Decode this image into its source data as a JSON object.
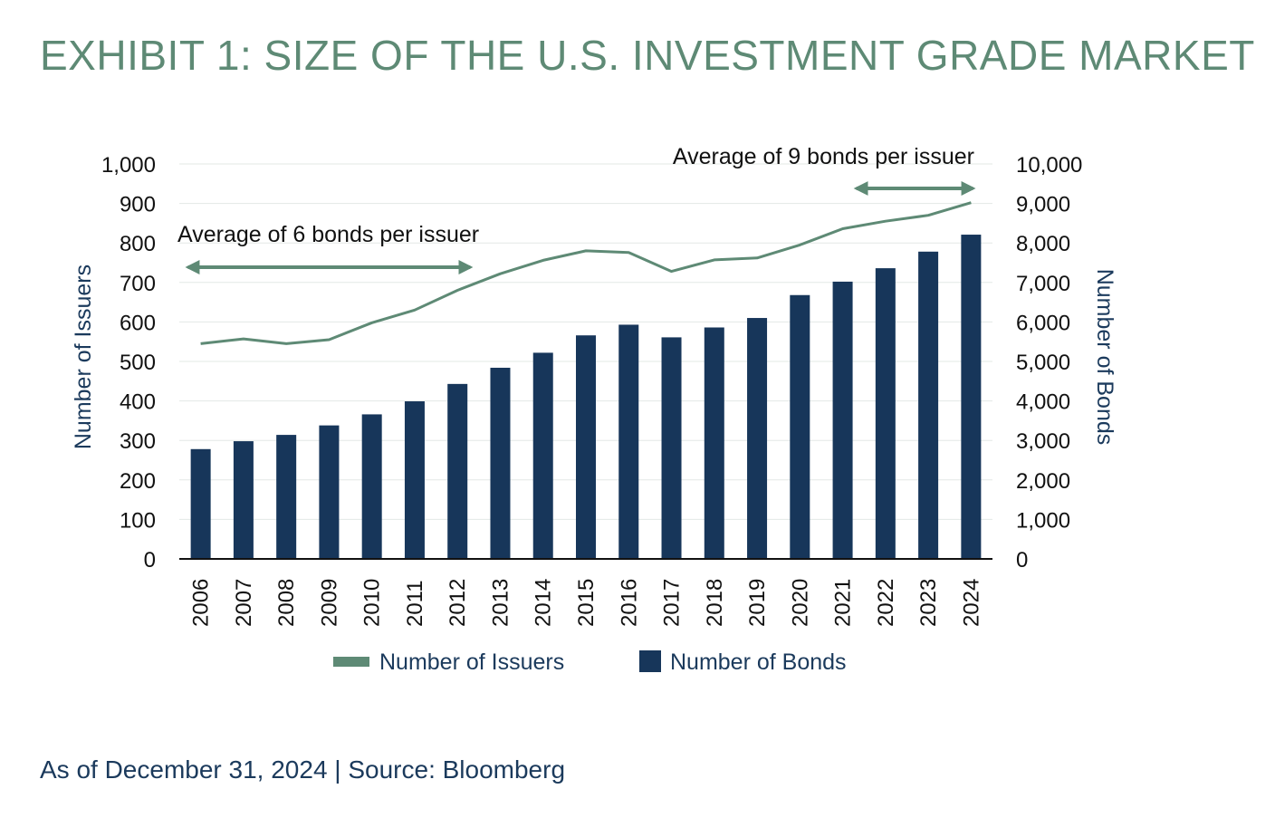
{
  "title": "EXHIBIT 1: SIZE OF THE U.S. INVESTMENT GRADE MARKET",
  "footer": "As of December 31, 2024 | Source: Bloomberg",
  "colors": {
    "title": "#5e8a75",
    "line": "#5e8a75",
    "bars": "#17365a",
    "axis_text": "#111111",
    "axis_label": "#1b3a5c",
    "grid": "#e3e8e6"
  },
  "chart_data": {
    "type": "bar",
    "categories": [
      "2006",
      "2007",
      "2008",
      "2009",
      "2010",
      "2011",
      "2012",
      "2013",
      "2014",
      "2015",
      "2016",
      "2017",
      "2018",
      "2019",
      "2020",
      "2021",
      "2022",
      "2023",
      "2024"
    ],
    "series": [
      {
        "name": "Number of Issuers",
        "type": "line",
        "axis": "left",
        "values": [
          545,
          557,
          545,
          555,
          598,
          630,
          680,
          722,
          756,
          780,
          776,
          728,
          757,
          762,
          795,
          836,
          855,
          870,
          902
        ]
      },
      {
        "name": "Number of Bonds",
        "type": "bar",
        "axis": "right",
        "values": [
          2780,
          2980,
          3140,
          3380,
          3660,
          3990,
          4430,
          4840,
          5220,
          5660,
          5930,
          5610,
          5860,
          6100,
          6680,
          7020,
          7360,
          7780,
          8210
        ]
      }
    ],
    "ylabel": "Number of Issuers",
    "y2label": "Number of Bonds",
    "ylim": [
      0,
      1000
    ],
    "y2lim": [
      0,
      10000
    ],
    "yticks": [
      "0",
      "100",
      "200",
      "300",
      "400",
      "500",
      "600",
      "700",
      "800",
      "900",
      "1,000"
    ],
    "y2ticks": [
      "0",
      "1,000",
      "2,000",
      "3,000",
      "4,000",
      "5,000",
      "6,000",
      "7,000",
      "8,000",
      "9,000",
      "10,000"
    ],
    "grid": true,
    "legend": "bottom",
    "annotations": [
      {
        "text": "Average of 6 bonds per issuer",
        "arrow_from": "2006",
        "arrow_to": "2012"
      },
      {
        "text": "Average of 9 bonds per issuer",
        "arrow_from": "2022",
        "arrow_to": "2024"
      }
    ]
  }
}
